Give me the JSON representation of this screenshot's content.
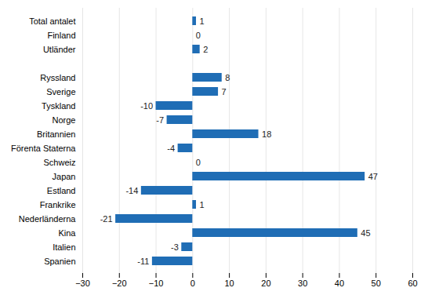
{
  "chart_data": {
    "type": "bar",
    "orientation": "horizontal",
    "categories": [
      "Total antalet",
      "Finland",
      "Utländer",
      null,
      "Ryssland",
      "Sverige",
      "Tyskland",
      "Norge",
      "Britannien",
      "Förenta Staterna",
      "Schweiz",
      "Japan",
      "Estland",
      "Frankrike",
      "Nederländerna",
      "Kina",
      "Italien",
      "Spanien"
    ],
    "values": [
      1,
      0,
      2,
      null,
      8,
      7,
      -10,
      -7,
      18,
      -4,
      0,
      47,
      -14,
      1,
      -21,
      45,
      -3,
      -11
    ],
    "color": "#1f6db5",
    "xlim": [
      -30,
      60
    ],
    "xticks": [
      -30,
      -20,
      -10,
      0,
      10,
      20,
      30,
      40,
      50,
      60
    ],
    "grid": true,
    "data_labels": true
  }
}
